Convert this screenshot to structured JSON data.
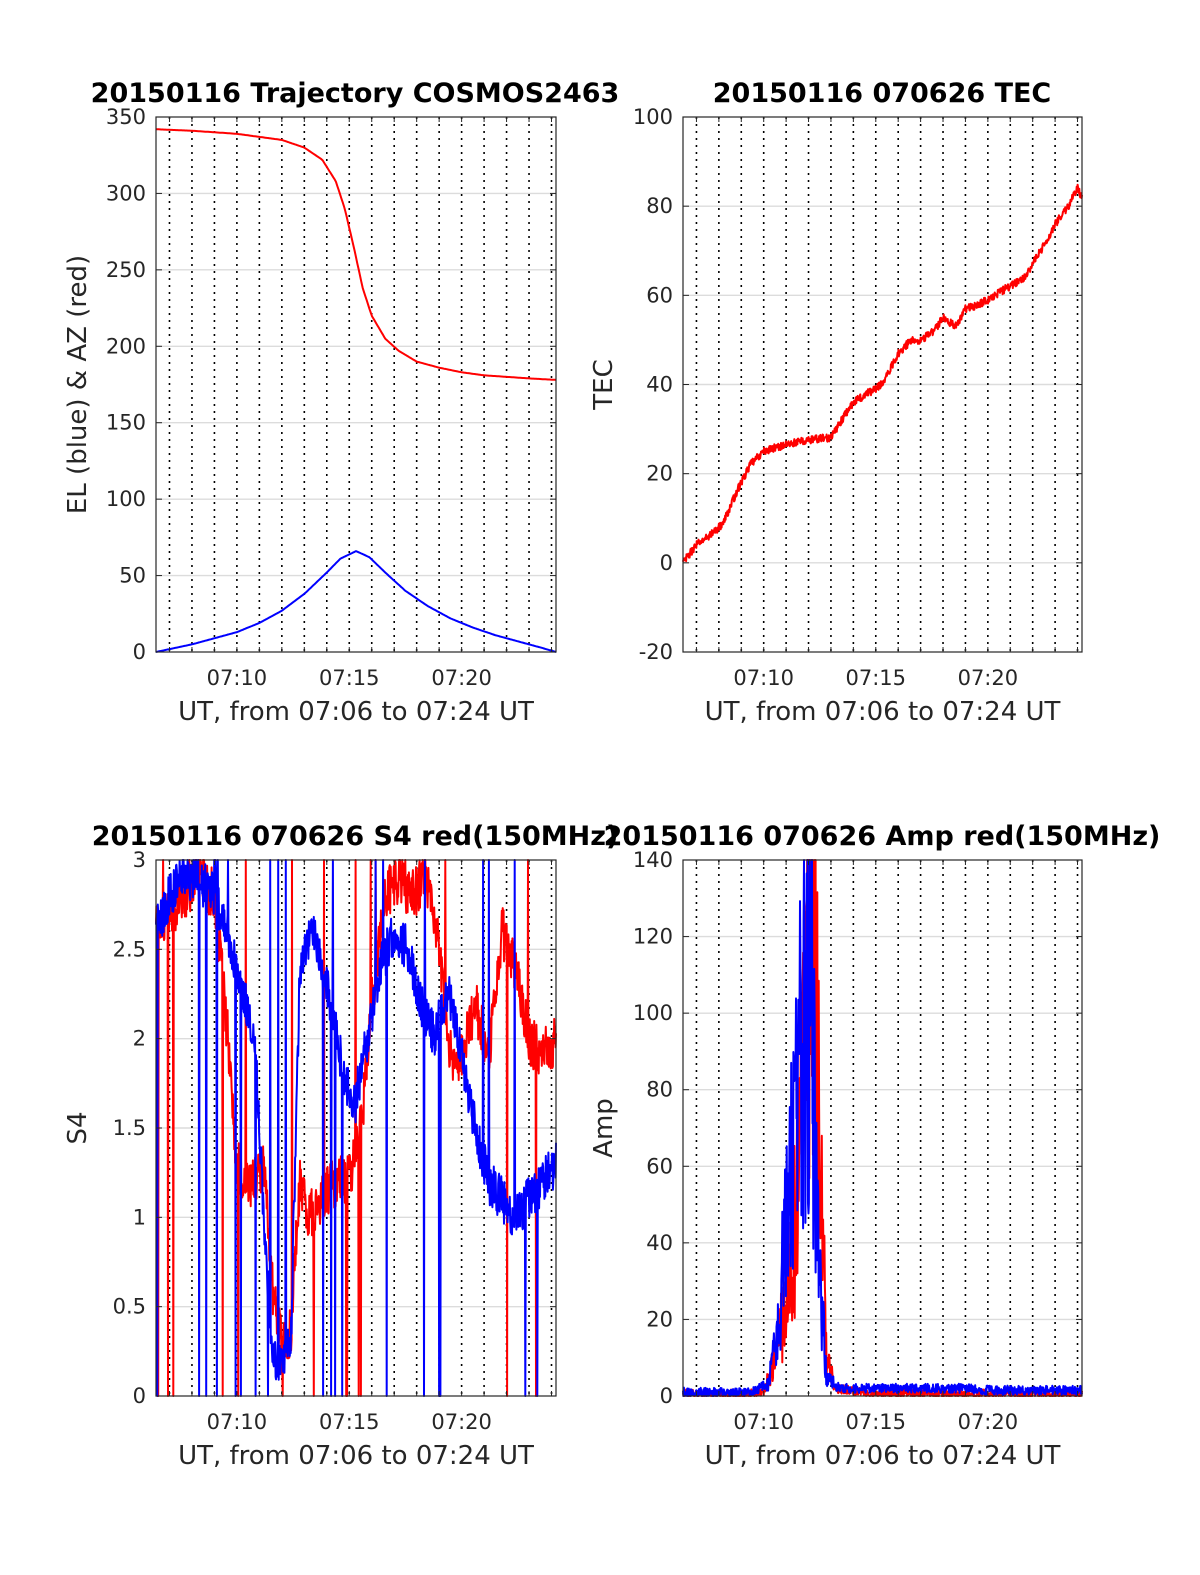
{
  "chart_data": [
    {
      "type": "line",
      "title": "20150116 Trajectory COSMOS2463",
      "xlabel": "UT, from 07:06 to 07:24 UT",
      "ylabel": "EL (blue) & AZ (red)",
      "xlim_min": [
        6.4,
        24.2
      ],
      "ylim": [
        0,
        350
      ],
      "yticks": [
        0,
        50,
        100,
        150,
        200,
        250,
        300,
        350
      ],
      "xticks": [
        {
          "v": 10,
          "label": "07:10"
        },
        {
          "v": 15,
          "label": "07:15"
        },
        {
          "v": 20,
          "label": "07:20"
        }
      ],
      "grid": true,
      "series": [
        {
          "color": "#ff0000",
          "style": "smooth",
          "x": [
            6.4,
            8,
            10,
            12,
            13,
            13.8,
            14.4,
            14.8,
            15.2,
            15.6,
            16,
            16.6,
            17.2,
            18,
            19,
            20,
            21,
            22,
            23,
            24.2
          ],
          "y": [
            342,
            341,
            339,
            335,
            330,
            322,
            308,
            290,
            265,
            238,
            220,
            205,
            197,
            190,
            186,
            183,
            181,
            180,
            179,
            178
          ]
        },
        {
          "color": "#0000ff",
          "style": "smooth",
          "x": [
            6.4,
            8,
            9,
            10,
            11,
            12,
            13,
            14,
            14.6,
            15.3,
            15.9,
            16.6,
            17.5,
            18.5,
            19.5,
            20.5,
            21.5,
            22.5,
            23.5,
            24.2
          ],
          "y": [
            0,
            5,
            9,
            13,
            19,
            27,
            38,
            52,
            61,
            66,
            62,
            52,
            40,
            30,
            22,
            16,
            11,
            7,
            3,
            0
          ]
        }
      ]
    },
    {
      "type": "line",
      "title": "20150116 070626 TEC",
      "xlabel": "UT, from 07:06 to 07:24 UT",
      "ylabel": "TEC",
      "xlim_min": [
        6.4,
        24.2
      ],
      "ylim": [
        -20,
        100
      ],
      "yticks": [
        -20,
        0,
        20,
        40,
        60,
        80,
        100
      ],
      "xticks": [
        {
          "v": 10,
          "label": "07:10"
        },
        {
          "v": 15,
          "label": "07:15"
        },
        {
          "v": 20,
          "label": "07:20"
        }
      ],
      "grid": true,
      "series": [
        {
          "color": "#ff0000",
          "style": "noisy",
          "noise": 0.5,
          "x": [
            6.4,
            7,
            7.8,
            8.2,
            8.8,
            9.4,
            10,
            10.6,
            11,
            11.4,
            12,
            12.6,
            13,
            13.6,
            14,
            14.6,
            15,
            15.4,
            16,
            16.6,
            17,
            17.6,
            18,
            18.6,
            19,
            19.6,
            20,
            20.6,
            21,
            21.6,
            22,
            22.6,
            23,
            23.6,
            24.0,
            24.2
          ],
          "y": [
            0,
            4,
            7,
            9,
            16,
            22,
            25,
            26,
            26.5,
            27,
            27.5,
            28,
            28,
            33,
            36,
            38,
            39,
            41,
            47,
            50,
            50,
            52,
            55,
            53,
            57,
            58,
            59,
            61,
            62,
            64,
            67,
            72,
            76,
            80,
            84,
            82
          ]
        }
      ]
    },
    {
      "type": "line",
      "title": "20150116 070626 S4 red(150MHz)",
      "xlabel": "UT, from 07:06 to 07:24 UT",
      "ylabel": "S4",
      "xlim_min": [
        6.4,
        24.2
      ],
      "ylim": [
        0,
        3
      ],
      "yticks": [
        0,
        0.5,
        1,
        1.5,
        2,
        2.5,
        3
      ],
      "xticks": [
        {
          "v": 10,
          "label": "07:10"
        },
        {
          "v": 15,
          "label": "07:15"
        },
        {
          "v": 20,
          "label": "07:20"
        }
      ],
      "grid": true,
      "series": [
        {
          "color": "#ff0000",
          "style": "noisy",
          "noise": 0.8,
          "x": [
            6.4,
            7,
            7.6,
            8.2,
            9,
            9.6,
            10,
            10.4,
            10.8,
            11.2,
            11.6,
            12,
            12.4,
            12.8,
            13.2,
            13.8,
            14.4,
            15,
            15.6,
            16,
            16.6,
            17.2,
            17.8,
            18.4,
            19,
            19.6,
            20,
            20.6,
            21.2,
            21.8,
            22.4,
            23,
            23.6,
            24.2
          ],
          "y": [
            2.6,
            2.7,
            2.8,
            2.9,
            2.8,
            2.0,
            1.3,
            1.2,
            1.2,
            1.3,
            0.6,
            0.3,
            0.35,
            1.2,
            1.0,
            1.1,
            1.2,
            1.2,
            1.6,
            2.2,
            2.8,
            2.9,
            2.8,
            2.9,
            2.5,
            1.8,
            1.9,
            2.2,
            1.9,
            2.6,
            2.4,
            2.0,
            1.9,
            2.0
          ]
        },
        {
          "color": "#0000ff",
          "style": "noisy",
          "noise": 0.7,
          "x": [
            6.4,
            7,
            7.6,
            8.2,
            9,
            9.6,
            10,
            10.4,
            10.8,
            11.2,
            11.6,
            12,
            12.4,
            12.8,
            13.4,
            14,
            14.6,
            15.2,
            15.8,
            16.4,
            17,
            17.6,
            18.2,
            18.8,
            19.4,
            20,
            20.6,
            21.2,
            21.8,
            22.4,
            23,
            23.6,
            24.2
          ],
          "y": [
            2.6,
            2.8,
            2.9,
            2.9,
            2.8,
            2.6,
            2.4,
            2.2,
            2.0,
            1.0,
            0.2,
            0.2,
            0.3,
            2.4,
            2.6,
            2.3,
            1.9,
            1.6,
            2.0,
            2.4,
            2.6,
            2.5,
            2.2,
            2.0,
            2.3,
            1.9,
            1.5,
            1.2,
            1.1,
            1.0,
            1.1,
            1.2,
            1.3
          ]
        }
      ]
    },
    {
      "type": "line",
      "title": "20150116 070626 Amp red(150MHz)",
      "xlabel": "UT, from 07:06 to 07:24 UT",
      "ylabel": "Amp",
      "xlim_min": [
        6.4,
        24.2
      ],
      "ylim": [
        0,
        140
      ],
      "yticks": [
        0,
        20,
        40,
        60,
        80,
        100,
        120,
        140
      ],
      "xticks": [
        {
          "v": 10,
          "label": "07:10"
        },
        {
          "v": 15,
          "label": "07:15"
        },
        {
          "v": 20,
          "label": "07:20"
        }
      ],
      "grid": true,
      "series": [
        {
          "color": "#ff0000",
          "style": "noisy",
          "noise": 0.6,
          "x": [
            6.4,
            9.4,
            10,
            10.4,
            10.8,
            11.2,
            11.6,
            11.9,
            12.2,
            12.5,
            12.8,
            13.2,
            15,
            24.2
          ],
          "y": [
            0.5,
            0.5,
            1,
            8,
            18,
            30,
            60,
            100,
            125,
            70,
            10,
            2,
            0.5,
            0.5
          ]
        },
        {
          "color": "#0000ff",
          "style": "noisy",
          "noise": 0.5,
          "x": [
            6.4,
            9.4,
            10.2,
            10.6,
            11,
            11.4,
            11.8,
            12.1,
            12.4,
            12.8,
            13.4,
            15,
            17,
            18,
            19,
            20,
            22,
            24.2
          ],
          "y": [
            1,
            1,
            3,
            15,
            45,
            70,
            95,
            110,
            40,
            5,
            2,
            2,
            2,
            2,
            2,
            1.5,
            1.5,
            1.5
          ]
        }
      ]
    }
  ]
}
